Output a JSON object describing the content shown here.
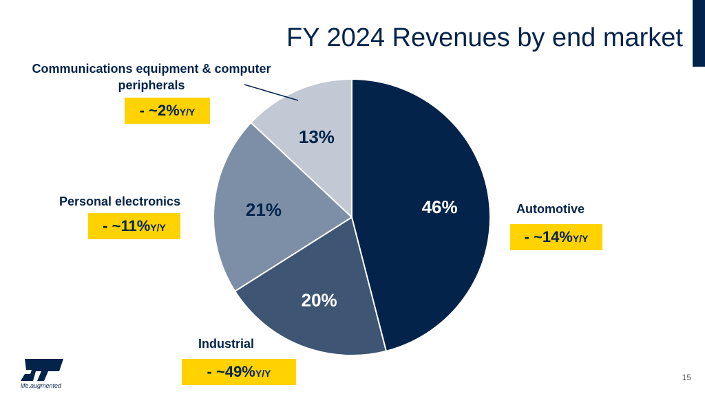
{
  "title": "FY 2024 Revenues by end market",
  "page_number": "15",
  "logo": {
    "text": "ST",
    "tagline": "life.augmented"
  },
  "chart_data": {
    "type": "pie",
    "title": "FY 2024 Revenues by end market",
    "slices": [
      {
        "label": "Automotive",
        "value": 46,
        "value_label": "46%",
        "yoy_prefix": "- ~ ",
        "yoy_value": "14%",
        "yoy_unit": "Y/Y",
        "color": "#03234b"
      },
      {
        "label": "Industrial",
        "value": 20,
        "value_label": "20%",
        "yoy_prefix": "- ~ ",
        "yoy_value": "49%",
        "yoy_unit": "Y/Y",
        "color": "#3e5574"
      },
      {
        "label": "Personal electronics",
        "value": 21,
        "value_label": "21%",
        "yoy_prefix": "- ~ ",
        "yoy_value": "11%",
        "yoy_unit": "Y/Y",
        "color": "#7d8fa6"
      },
      {
        "label": "Communications equipment & computer peripherals",
        "value": 13,
        "value_label": "13%",
        "yoy_prefix": "- ~ ",
        "yoy_value": "2%",
        "yoy_unit": "Y/Y",
        "color": "#c2c9d4"
      }
    ]
  },
  "colors": {
    "brand": "#03234b",
    "badge": "#ffd200"
  }
}
